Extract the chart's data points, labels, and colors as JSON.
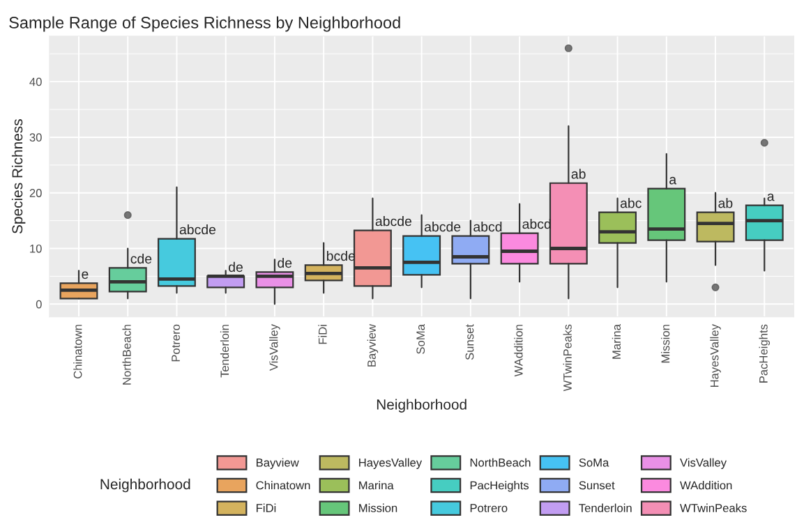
{
  "chart_data": {
    "type": "box",
    "title": "Sample Range of Species Richness by Neighborhood",
    "xlabel": "Neighborhood",
    "ylabel": "Species Richness",
    "legend_title": "Neighborhood",
    "categories": [
      "Chinatown",
      "NorthBeach",
      "Potrero",
      "Tenderloin",
      "VisValley",
      "FiDi",
      "Bayview",
      "SoMa",
      "Sunset",
      "WAddition",
      "WTwinPeaks",
      "Marina",
      "Mission",
      "HayesValley",
      "PacHeights"
    ],
    "series": [
      {
        "name": "Bayview",
        "color": "#f29894",
        "boxes": [
          null,
          null,
          null,
          null,
          null,
          null,
          {
            "low": 1,
            "q1": 3.25,
            "median": 6.5,
            "q3": 13.25,
            "high": 19
          },
          null,
          null,
          null,
          null,
          null,
          null,
          null,
          null
        ]
      },
      {
        "name": "Chinatown",
        "color": "#e8a45e",
        "boxes": [
          {
            "low": 1,
            "q1": 1,
            "median": 2.5,
            "q3": 3.75,
            "high": 6
          },
          null,
          null,
          null,
          null,
          null,
          null,
          null,
          null,
          null,
          null,
          null,
          null,
          null,
          null
        ]
      },
      {
        "name": "FiDi",
        "color": "#d4b35e",
        "boxes": [
          null,
          null,
          null,
          null,
          null,
          {
            "low": 2,
            "q1": 4.25,
            "median": 5.5,
            "q3": 7,
            "high": 11
          },
          null,
          null,
          null,
          null,
          null,
          null,
          null,
          null,
          null
        ]
      },
      {
        "name": "HayesValley",
        "color": "#bdb960",
        "boxes": [
          null,
          null,
          null,
          null,
          null,
          null,
          null,
          null,
          null,
          null,
          null,
          null,
          null,
          {
            "low": 7,
            "q1": 11.25,
            "median": 14.5,
            "q3": 16.5,
            "high": 20,
            "outliers": [
              3
            ]
          },
          null
        ]
      },
      {
        "name": "Marina",
        "color": "#9bbf5a",
        "boxes": [
          null,
          null,
          null,
          null,
          null,
          null,
          null,
          null,
          null,
          null,
          null,
          {
            "low": 3,
            "q1": 11,
            "median": 13,
            "q3": 16.5,
            "high": 19
          },
          null,
          null,
          null
        ]
      },
      {
        "name": "Mission",
        "color": "#66c67a",
        "boxes": [
          null,
          null,
          null,
          null,
          null,
          null,
          null,
          null,
          null,
          null,
          null,
          null,
          {
            "low": 4,
            "q1": 11.5,
            "median": 13.5,
            "q3": 20.75,
            "high": 27
          },
          null,
          null
        ]
      },
      {
        "name": "NorthBeach",
        "color": "#66cd9c",
        "boxes": [
          null,
          {
            "low": 1,
            "q1": 2.25,
            "median": 4,
            "q3": 6.5,
            "high": 10,
            "outliers": [
              16
            ]
          },
          null,
          null,
          null,
          null,
          null,
          null,
          null,
          null,
          null,
          null,
          null,
          null,
          null
        ]
      },
      {
        "name": "PacHeights",
        "color": "#46cdc1",
        "boxes": [
          null,
          null,
          null,
          null,
          null,
          null,
          null,
          null,
          null,
          null,
          null,
          null,
          null,
          null,
          {
            "low": 6,
            "q1": 11.5,
            "median": 15,
            "q3": 17.75,
            "high": 19,
            "outliers": [
              29
            ]
          }
        ]
      },
      {
        "name": "Potrero",
        "color": "#46cade",
        "boxes": [
          null,
          null,
          {
            "low": 2,
            "q1": 3.25,
            "median": 4.5,
            "q3": 11.75,
            "high": 21
          },
          null,
          null,
          null,
          null,
          null,
          null,
          null,
          null,
          null,
          null,
          null,
          null
        ]
      },
      {
        "name": "SoMa",
        "color": "#46c2f3",
        "boxes": [
          null,
          null,
          null,
          null,
          null,
          null,
          null,
          {
            "low": 3,
            "q1": 5.25,
            "median": 7.5,
            "q3": 12.25,
            "high": 16
          },
          null,
          null,
          null,
          null,
          null,
          null,
          null
        ]
      },
      {
        "name": "Sunset",
        "color": "#8fabf3",
        "boxes": [
          null,
          null,
          null,
          null,
          null,
          null,
          null,
          null,
          {
            "low": 1,
            "q1": 7.25,
            "median": 8.5,
            "q3": 12.25,
            "high": 15
          },
          null,
          null,
          null,
          null,
          null,
          null
        ]
      },
      {
        "name": "Tenderloin",
        "color": "#c29df2",
        "boxes": [
          null,
          null,
          null,
          {
            "low": 2,
            "q1": 3,
            "median": 5,
            "q3": 5,
            "high": 6
          },
          null,
          null,
          null,
          null,
          null,
          null,
          null,
          null,
          null,
          null,
          null
        ]
      },
      {
        "name": "VisValley",
        "color": "#e990e6",
        "boxes": [
          null,
          null,
          null,
          null,
          {
            "low": 0,
            "q1": 3,
            "median": 5,
            "q3": 5.75,
            "high": 8
          },
          null,
          null,
          null,
          null,
          null,
          null,
          null,
          null,
          null,
          null
        ]
      },
      {
        "name": "WAddition",
        "color": "#fb8adf",
        "boxes": [
          null,
          null,
          null,
          null,
          null,
          null,
          null,
          null,
          null,
          {
            "low": 4,
            "q1": 7.25,
            "median": 9.5,
            "q3": 12.75,
            "high": 18
          },
          null,
          null,
          null,
          null,
          null
        ]
      },
      {
        "name": "WTwinPeaks",
        "color": "#f48fb5",
        "boxes": [
          null,
          null,
          null,
          null,
          null,
          null,
          null,
          null,
          null,
          null,
          {
            "low": 1,
            "q1": 7.25,
            "median": 10,
            "q3": 21.75,
            "high": 32,
            "outliers": [
              46
            ]
          },
          null,
          null,
          null,
          null
        ]
      }
    ],
    "annotations": [
      {
        "text": "e",
        "x": "Chinatown",
        "y": 3.75
      },
      {
        "text": "cde",
        "x": "NorthBeach",
        "y": 6.5
      },
      {
        "text": "abcde",
        "x": "Potrero",
        "y": 11.75
      },
      {
        "text": "de",
        "x": "Tenderloin",
        "y": 5
      },
      {
        "text": "de",
        "x": "VisValley",
        "y": 5.75
      },
      {
        "text": "bcde",
        "x": "FiDi",
        "y": 7
      },
      {
        "text": "abcde",
        "x": "Bayview",
        "y": 13.25
      },
      {
        "text": "abcde",
        "x": "SoMa",
        "y": 12.25
      },
      {
        "text": "abcd",
        "x": "Sunset",
        "y": 12.25
      },
      {
        "text": "abcd",
        "x": "WAddition",
        "y": 12.75
      },
      {
        "text": "ab",
        "x": "WTwinPeaks",
        "y": 21.75
      },
      {
        "text": "abc",
        "x": "Marina",
        "y": 16.5
      },
      {
        "text": "a",
        "x": "Mission",
        "y": 20.75
      },
      {
        "text": "ab",
        "x": "HayesValley",
        "y": 16.5
      },
      {
        "text": "a",
        "x": "PacHeights",
        "y": 17.75
      }
    ],
    "ylim": [
      -2.3,
      48.2
    ],
    "yticks": [
      0,
      10,
      20,
      30,
      40
    ],
    "grid": true,
    "legend": "bottom"
  }
}
